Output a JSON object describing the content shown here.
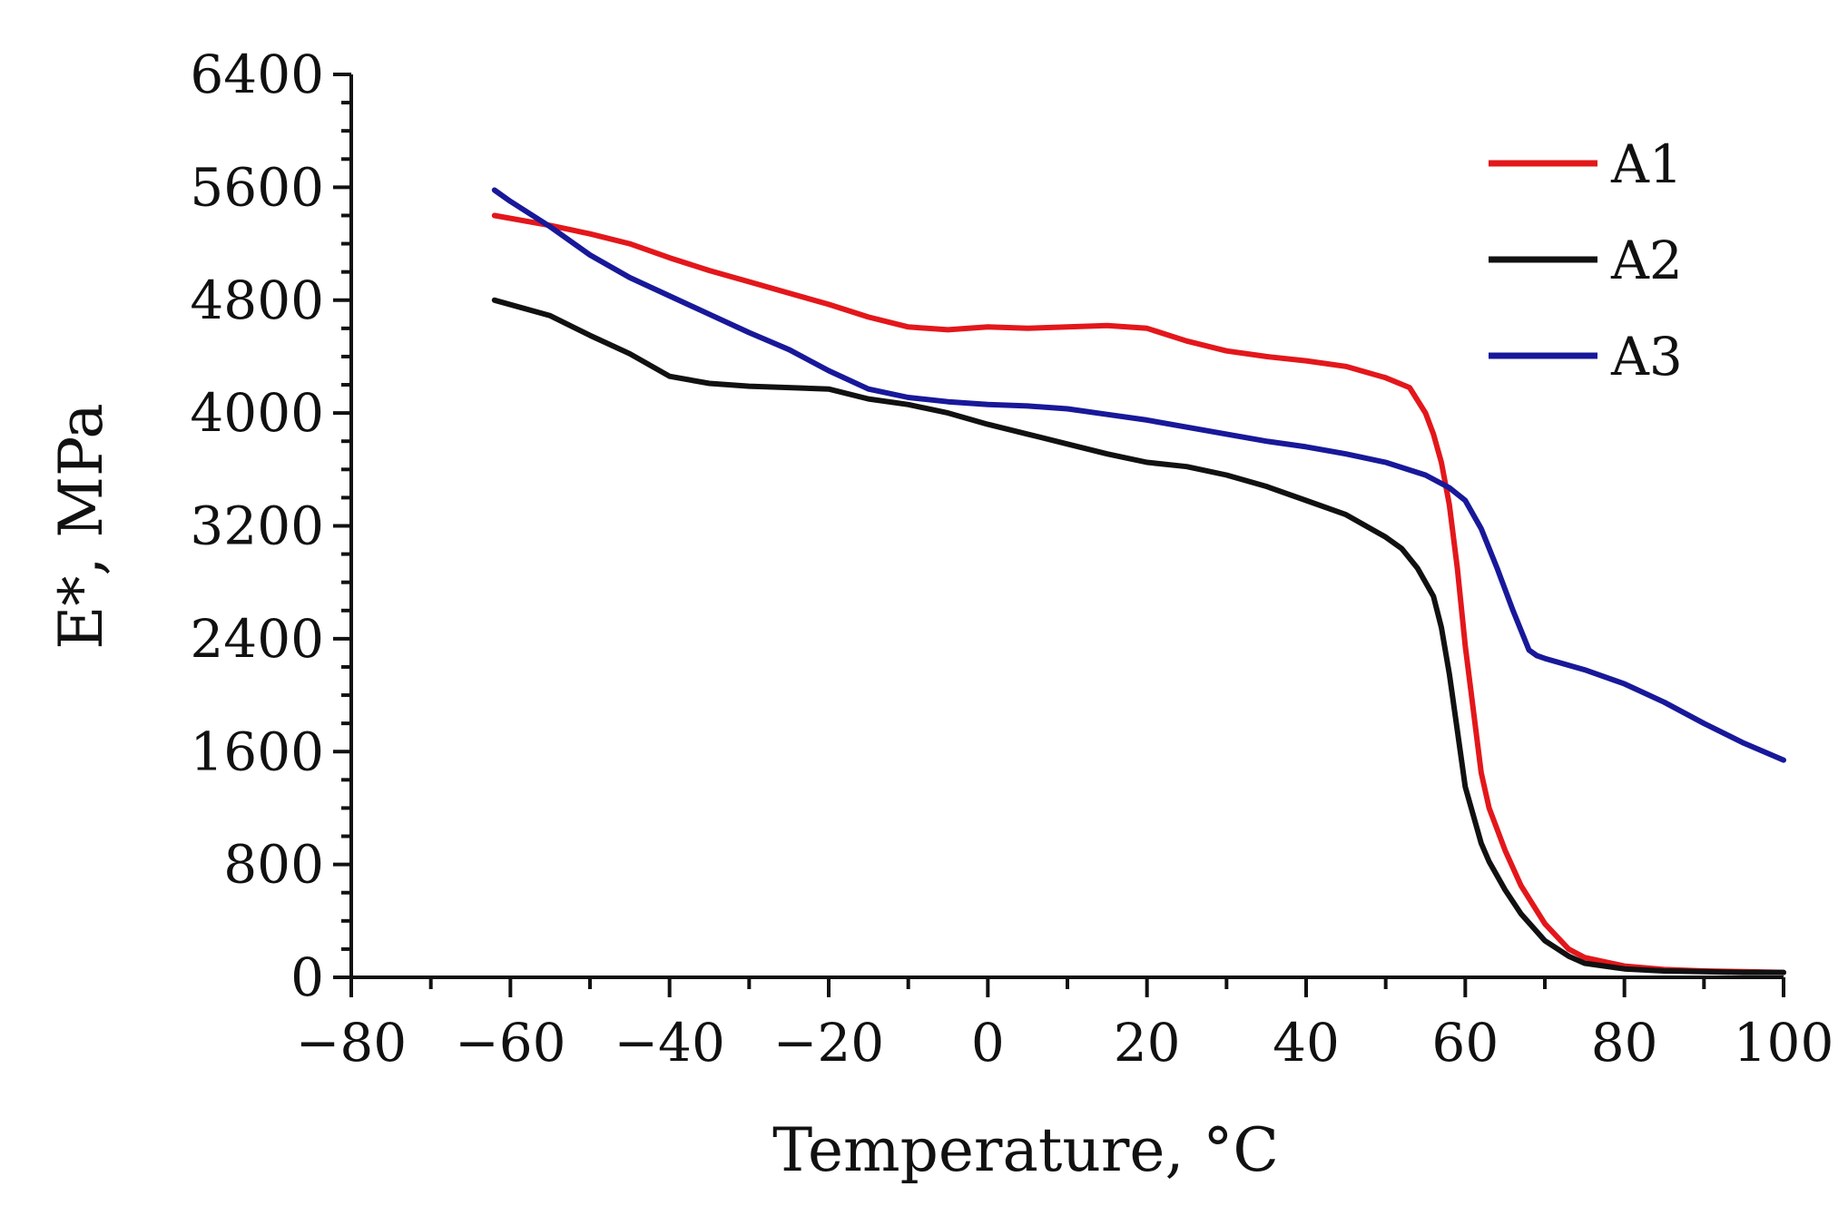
{
  "chart_data": {
    "type": "line",
    "title": "",
    "xlabel": "Temperature, °C",
    "ylabel": "E*, MPa",
    "xlim": [
      -80,
      100
    ],
    "ylim": [
      0,
      6400
    ],
    "x_ticks": [
      -80,
      -60,
      -40,
      -20,
      0,
      20,
      40,
      60,
      80,
      100
    ],
    "x_tick_labels": [
      "−80",
      "−60",
      "−40",
      "−20",
      "0",
      "20",
      "40",
      "60",
      "80",
      "100"
    ],
    "x_minor_step": 10,
    "y_ticks": [
      0,
      800,
      1600,
      2400,
      3200,
      4000,
      4800,
      5600,
      6400
    ],
    "y_tick_labels": [
      "0",
      "800",
      "1600",
      "2400",
      "3200",
      "4000",
      "4800",
      "5600",
      "6400"
    ],
    "y_minor_step": 200,
    "grid": false,
    "legend_position": "top-right",
    "series": [
      {
        "name": "A1",
        "color": "#e3171b",
        "x": [
          -62,
          -55,
          -50,
          -45,
          -40,
          -35,
          -30,
          -25,
          -20,
          -15,
          -10,
          -5,
          0,
          5,
          10,
          15,
          20,
          25,
          30,
          35,
          40,
          45,
          50,
          53,
          55,
          56,
          57,
          58,
          59,
          60,
          61,
          62,
          63,
          65,
          67,
          70,
          73,
          75,
          80,
          85,
          90,
          95,
          100
        ],
        "y": [
          5400,
          5330,
          5270,
          5200,
          5100,
          5010,
          4930,
          4850,
          4770,
          4680,
          4610,
          4590,
          4610,
          4600,
          4610,
          4620,
          4600,
          4510,
          4440,
          4400,
          4370,
          4330,
          4250,
          4180,
          4000,
          3850,
          3650,
          3350,
          2900,
          2350,
          1900,
          1450,
          1200,
          900,
          650,
          380,
          200,
          140,
          80,
          55,
          45,
          40,
          35
        ]
      },
      {
        "name": "A2",
        "color": "#111111",
        "x": [
          -62,
          -55,
          -50,
          -45,
          -40,
          -35,
          -30,
          -25,
          -20,
          -15,
          -10,
          -5,
          0,
          5,
          10,
          15,
          20,
          25,
          30,
          35,
          40,
          45,
          50,
          52,
          54,
          56,
          57,
          58,
          59,
          60,
          61,
          62,
          63,
          65,
          67,
          70,
          73,
          75,
          80,
          85,
          90,
          95,
          100
        ],
        "y": [
          4800,
          4690,
          4550,
          4420,
          4260,
          4210,
          4190,
          4180,
          4170,
          4100,
          4060,
          4000,
          3920,
          3850,
          3780,
          3710,
          3650,
          3620,
          3560,
          3480,
          3380,
          3280,
          3120,
          3040,
          2900,
          2700,
          2480,
          2150,
          1750,
          1350,
          1150,
          950,
          820,
          620,
          450,
          260,
          150,
          100,
          60,
          45,
          40,
          35,
          35
        ]
      },
      {
        "name": "A3",
        "color": "#18189a",
        "x": [
          -62,
          -60,
          -55,
          -50,
          -45,
          -40,
          -35,
          -30,
          -25,
          -20,
          -15,
          -10,
          -5,
          0,
          5,
          10,
          15,
          20,
          25,
          30,
          35,
          40,
          45,
          50,
          55,
          58,
          60,
          62,
          64,
          66,
          68,
          69,
          70,
          75,
          80,
          85,
          90,
          95,
          100
        ],
        "y": [
          5580,
          5500,
          5320,
          5120,
          4960,
          4830,
          4700,
          4570,
          4450,
          4300,
          4170,
          4110,
          4080,
          4060,
          4050,
          4030,
          3990,
          3950,
          3900,
          3850,
          3800,
          3760,
          3710,
          3650,
          3560,
          3470,
          3380,
          3180,
          2900,
          2600,
          2320,
          2280,
          2260,
          2180,
          2080,
          1950,
          1800,
          1660,
          1540
        ]
      }
    ]
  }
}
